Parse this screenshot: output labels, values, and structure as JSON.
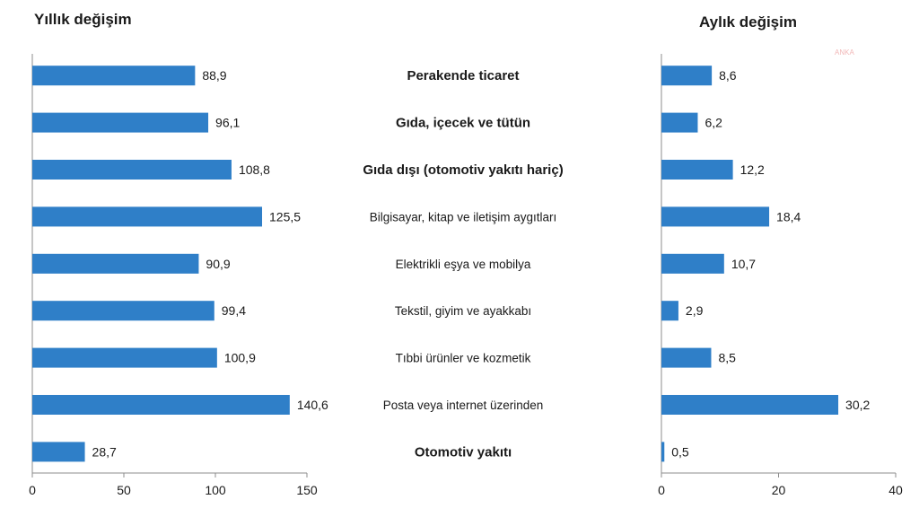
{
  "watermark": "ANKA",
  "chart_data": [
    {
      "type": "bar",
      "orientation": "horizontal",
      "title": "Yıllık değişim",
      "categories": [
        "Perakende ticaret",
        "Gıda, içecek ve tütün",
        "Gıda dışı (otomotiv yakıtı hariç)",
        "Bilgisayar, kitap ve iletişim aygıtları",
        "Elektrikli eşya ve mobilya",
        "Tekstil, giyim ve ayakkabı",
        "Tıbbi ürünler ve kozmetik",
        "Posta veya internet üzerinden",
        "Otomotiv yakıtı"
      ],
      "bold_categories": [
        true,
        true,
        true,
        false,
        false,
        false,
        false,
        false,
        true
      ],
      "values": [
        88.9,
        96.1,
        108.8,
        125.5,
        90.9,
        99.4,
        100.9,
        140.6,
        28.7
      ],
      "value_labels": [
        "88,9",
        "96,1",
        "108,8",
        "125,5",
        "90,9",
        "99,4",
        "100,9",
        "140,6",
        "28,7"
      ],
      "xlim": [
        0,
        150
      ],
      "xticks": [
        0,
        50,
        100,
        150
      ],
      "xtick_labels": [
        "0",
        "50",
        "100",
        "150"
      ],
      "bar_color": "#2f7fc8",
      "grid": false
    },
    {
      "type": "bar",
      "orientation": "horizontal",
      "title": "Aylık değişim",
      "values": [
        8.6,
        6.2,
        12.2,
        18.4,
        10.7,
        2.9,
        8.5,
        30.2,
        0.5
      ],
      "value_labels": [
        "8,6",
        "6,2",
        "12,2",
        "18,4",
        "10,7",
        "2,9",
        "8,5",
        "30,2",
        "0,5"
      ],
      "xlim": [
        0,
        40
      ],
      "xticks": [
        0,
        20,
        40
      ],
      "xtick_labels": [
        "0",
        "20",
        "40"
      ],
      "bar_color": "#2f7fc8",
      "grid": false
    }
  ]
}
